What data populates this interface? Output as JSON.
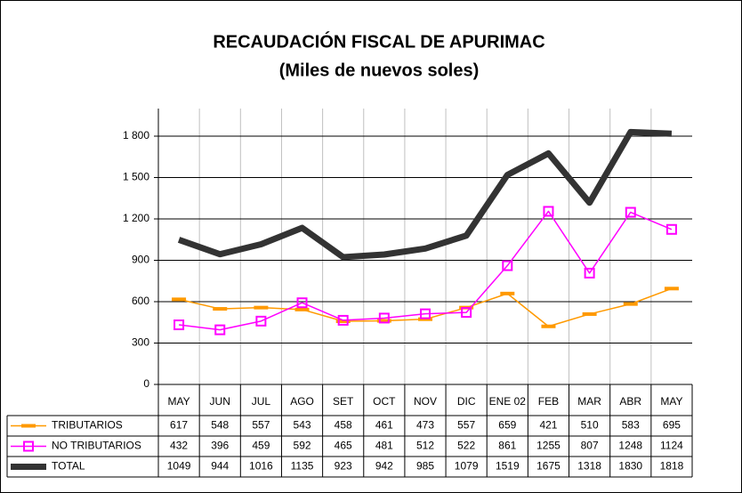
{
  "chart_data": {
    "type": "line",
    "title": "RECAUDACIÓN FISCAL DE APURIMAC",
    "subtitle": "(Miles de nuevos soles)",
    "categories": [
      "MAY",
      "JUN",
      "JUL",
      "AGO",
      "SET",
      "OCT",
      "NOV",
      "DIC",
      "ENE 02",
      "FEB",
      "MAR",
      "ABR",
      "MAY"
    ],
    "series": [
      {
        "name": "TRIBUTARIOS",
        "color": "#ff9900",
        "values": [
          617,
          548,
          557,
          543,
          458,
          461,
          473,
          557,
          659,
          421,
          510,
          583,
          695
        ]
      },
      {
        "name": "NO TRIBUTARIOS",
        "color": "#ff00ff",
        "values": [
          432,
          396,
          459,
          592,
          465,
          481,
          512,
          522,
          861,
          1255,
          807,
          1248,
          1124
        ]
      },
      {
        "name": "TOTAL",
        "color": "#333333",
        "values": [
          1049,
          944,
          1016,
          1135,
          923,
          942,
          985,
          1079,
          1519,
          1675,
          1318,
          1830,
          1818
        ]
      }
    ],
    "ylim": [
      0,
      2000
    ],
    "yticks": [
      0,
      300,
      600,
      900,
      {
        "value": 1200,
        "label": "1 200"
      },
      {
        "value": 1500,
        "label": "1 500"
      },
      {
        "value": 1800,
        "label": "1 800"
      }
    ],
    "grid": true
  }
}
